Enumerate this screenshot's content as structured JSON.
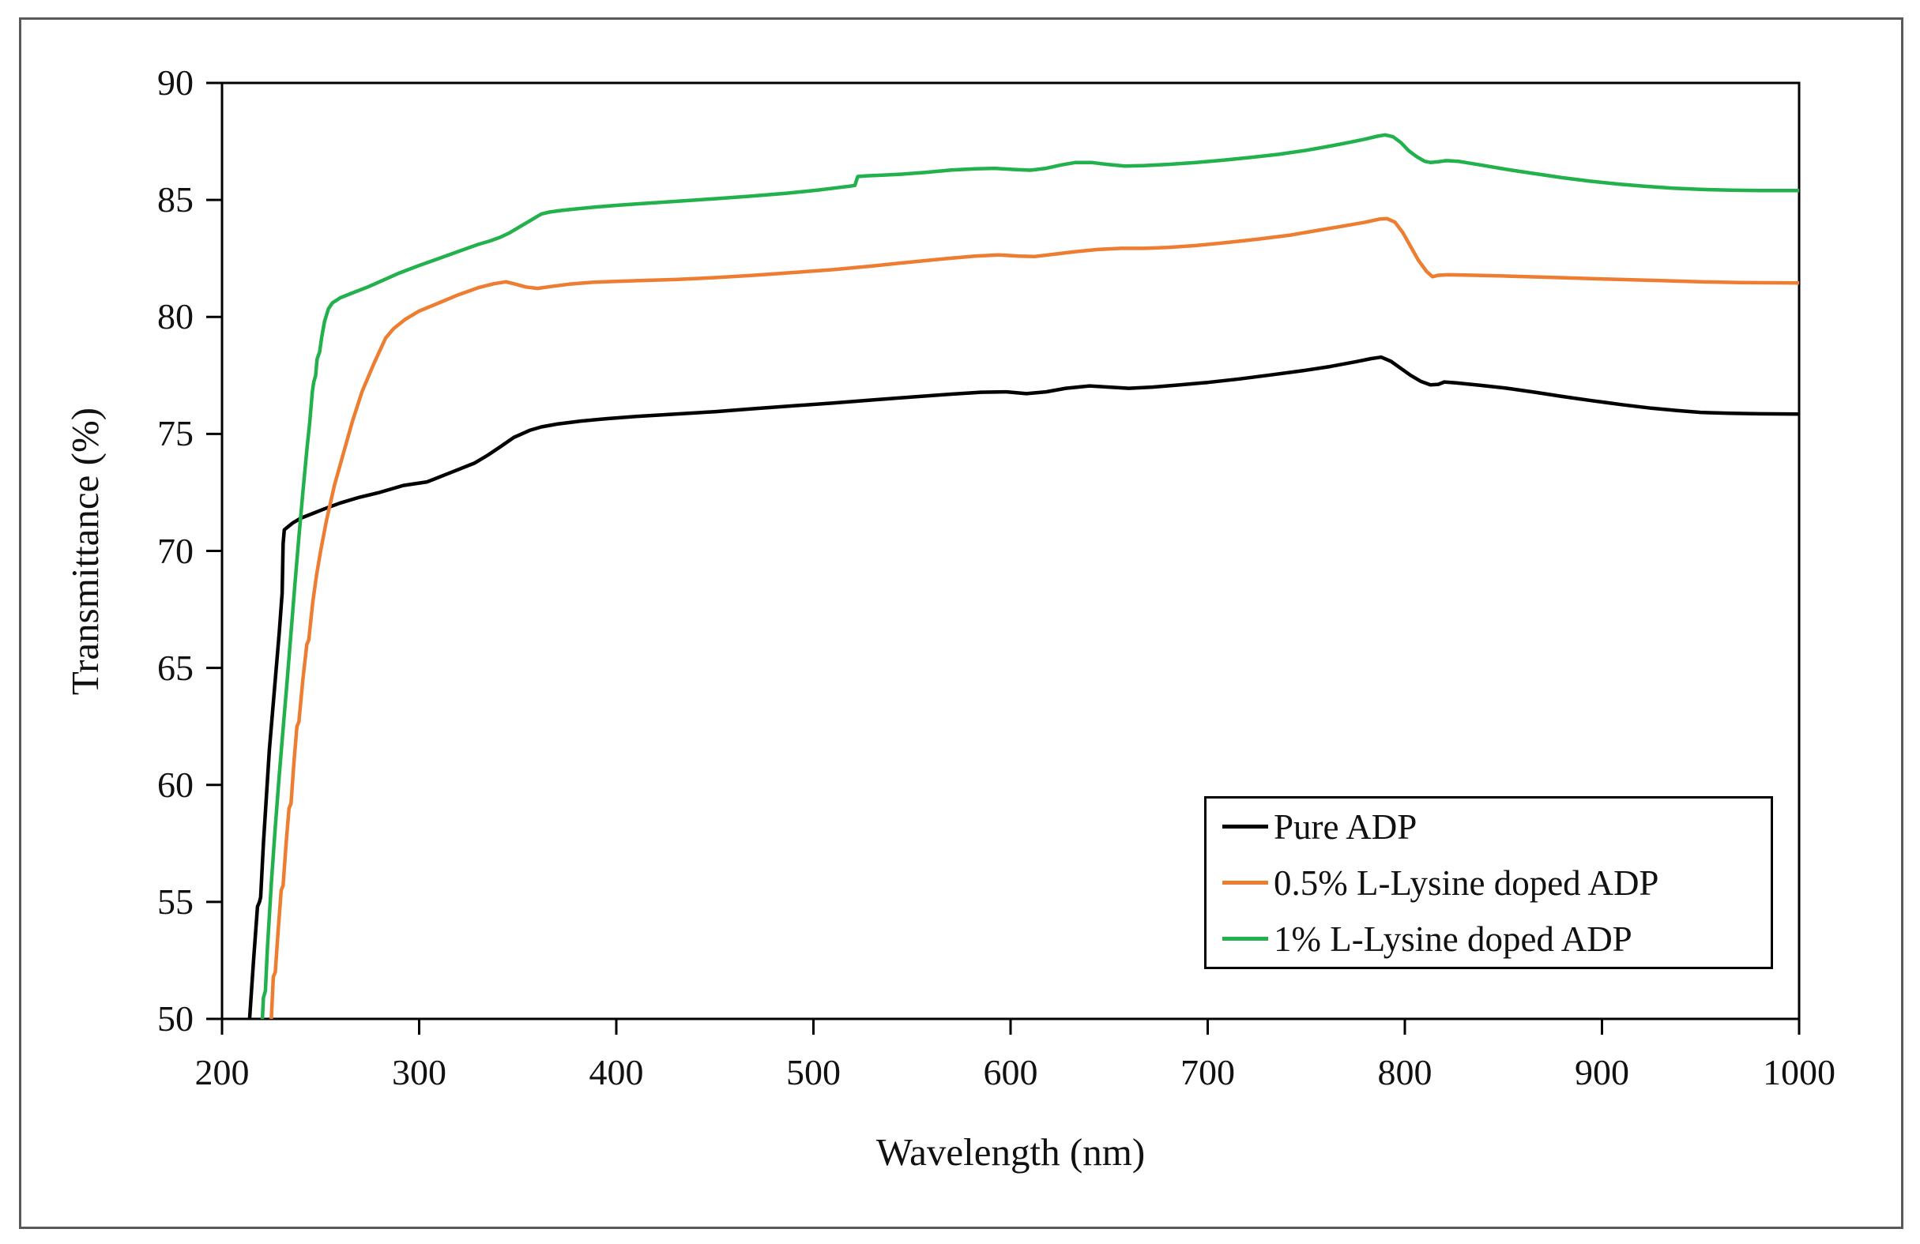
{
  "chart_data": {
    "type": "line",
    "title": "",
    "xlabel": "Wavelength (nm)",
    "ylabel": "Transmittance (%)",
    "xlim": [
      200,
      1000
    ],
    "ylim": [
      50,
      90
    ],
    "x_ticks": [
      200,
      300,
      400,
      500,
      600,
      700,
      800,
      900,
      1000
    ],
    "y_ticks": [
      50,
      55,
      60,
      65,
      70,
      75,
      80,
      85,
      90
    ],
    "grid": false,
    "legend": {
      "position": "inside-bottom-right",
      "entries": [
        "Pure ADP",
        "0.5% L-Lysine doped ADP",
        "1% L-Lysine doped ADP"
      ]
    },
    "colors": {
      "axis": "#000000",
      "text": "#111111",
      "figure_border": "#595959"
    },
    "series": [
      {
        "name": "Pure ADP",
        "color": "#000000",
        "points": [
          [
            213,
            48.5
          ],
          [
            214,
            50
          ],
          [
            216,
            52.5
          ],
          [
            218,
            54.8
          ],
          [
            219,
            55
          ],
          [
            219.6,
            55.2
          ],
          [
            221,
            57.5
          ],
          [
            224,
            61.5
          ],
          [
            227,
            64.5
          ],
          [
            229,
            66.5
          ],
          [
            230.5,
            68.2
          ],
          [
            231,
            70.3
          ],
          [
            231.6,
            70.9
          ],
          [
            233,
            71.0
          ],
          [
            236,
            71.2
          ],
          [
            240,
            71.4
          ],
          [
            246,
            71.6
          ],
          [
            252,
            71.8
          ],
          [
            260,
            72.05
          ],
          [
            270,
            72.3
          ],
          [
            280,
            72.5
          ],
          [
            292,
            72.8
          ],
          [
            304,
            72.95
          ],
          [
            316,
            73.35
          ],
          [
            328,
            73.75
          ],
          [
            335,
            74.1
          ],
          [
            342,
            74.5
          ],
          [
            348,
            74.85
          ],
          [
            352,
            75.0
          ],
          [
            356,
            75.15
          ],
          [
            362,
            75.3
          ],
          [
            370,
            75.42
          ],
          [
            382,
            75.55
          ],
          [
            395,
            75.65
          ],
          [
            410,
            75.75
          ],
          [
            430,
            75.85
          ],
          [
            450,
            75.95
          ],
          [
            470,
            76.08
          ],
          [
            490,
            76.2
          ],
          [
            510,
            76.32
          ],
          [
            530,
            76.45
          ],
          [
            550,
            76.58
          ],
          [
            570,
            76.7
          ],
          [
            585,
            76.78
          ],
          [
            598,
            76.8
          ],
          [
            608,
            76.72
          ],
          [
            618,
            76.8
          ],
          [
            628,
            76.95
          ],
          [
            640,
            77.05
          ],
          [
            650,
            77.0
          ],
          [
            660,
            76.95
          ],
          [
            672,
            77.0
          ],
          [
            686,
            77.1
          ],
          [
            700,
            77.2
          ],
          [
            716,
            77.35
          ],
          [
            732,
            77.52
          ],
          [
            748,
            77.7
          ],
          [
            762,
            77.88
          ],
          [
            775,
            78.08
          ],
          [
            783,
            78.22
          ],
          [
            788,
            78.28
          ],
          [
            793,
            78.1
          ],
          [
            798,
            77.8
          ],
          [
            803,
            77.5
          ],
          [
            808,
            77.25
          ],
          [
            813,
            77.1
          ],
          [
            817,
            77.12
          ],
          [
            820,
            77.22
          ],
          [
            826,
            77.18
          ],
          [
            838,
            77.08
          ],
          [
            852,
            76.95
          ],
          [
            866,
            76.78
          ],
          [
            880,
            76.6
          ],
          [
            895,
            76.42
          ],
          [
            910,
            76.25
          ],
          [
            925,
            76.1
          ],
          [
            938,
            76.0
          ],
          [
            950,
            75.92
          ],
          [
            965,
            75.88
          ],
          [
            980,
            75.86
          ],
          [
            1000,
            75.85
          ]
        ]
      },
      {
        "name": "0.5% L-Lysine doped ADP",
        "color": "#ED7D31",
        "points": [
          [
            224,
            48.5
          ],
          [
            225,
            50
          ],
          [
            226,
            51.8
          ],
          [
            227,
            52.0
          ],
          [
            228.5,
            53.8
          ],
          [
            230,
            55.5
          ],
          [
            231,
            55.7
          ],
          [
            232.5,
            57.5
          ],
          [
            234,
            59.0
          ],
          [
            235,
            59.2
          ],
          [
            236.5,
            61.0
          ],
          [
            238,
            62.5
          ],
          [
            239,
            62.7
          ],
          [
            241,
            64.5
          ],
          [
            243,
            66.0
          ],
          [
            244,
            66.2
          ],
          [
            246,
            67.8
          ],
          [
            248,
            69.0
          ],
          [
            250,
            70.0
          ],
          [
            253,
            71.3
          ],
          [
            257,
            72.8
          ],
          [
            261,
            74.0
          ],
          [
            266,
            75.5
          ],
          [
            271,
            76.8
          ],
          [
            277,
            78.0
          ],
          [
            283,
            79.1
          ],
          [
            287,
            79.5
          ],
          [
            293,
            79.9
          ],
          [
            300,
            80.25
          ],
          [
            310,
            80.6
          ],
          [
            320,
            80.95
          ],
          [
            330,
            81.25
          ],
          [
            338,
            81.42
          ],
          [
            344,
            81.5
          ],
          [
            349,
            81.4
          ],
          [
            354,
            81.28
          ],
          [
            360,
            81.22
          ],
          [
            367,
            81.3
          ],
          [
            376,
            81.4
          ],
          [
            388,
            81.48
          ],
          [
            400,
            81.52
          ],
          [
            415,
            81.56
          ],
          [
            430,
            81.6
          ],
          [
            450,
            81.68
          ],
          [
            470,
            81.78
          ],
          [
            490,
            81.9
          ],
          [
            510,
            82.02
          ],
          [
            530,
            82.18
          ],
          [
            550,
            82.35
          ],
          [
            568,
            82.5
          ],
          [
            582,
            82.6
          ],
          [
            594,
            82.65
          ],
          [
            604,
            82.6
          ],
          [
            612,
            82.58
          ],
          [
            622,
            82.68
          ],
          [
            632,
            82.78
          ],
          [
            644,
            82.88
          ],
          [
            656,
            82.93
          ],
          [
            668,
            82.93
          ],
          [
            680,
            82.97
          ],
          [
            694,
            83.05
          ],
          [
            710,
            83.18
          ],
          [
            726,
            83.33
          ],
          [
            742,
            83.5
          ],
          [
            756,
            83.7
          ],
          [
            770,
            83.9
          ],
          [
            780,
            84.05
          ],
          [
            787,
            84.18
          ],
          [
            791,
            84.2
          ],
          [
            795,
            84.05
          ],
          [
            799,
            83.6
          ],
          [
            803,
            83.0
          ],
          [
            807,
            82.4
          ],
          [
            811,
            81.95
          ],
          [
            814,
            81.72
          ],
          [
            817,
            81.78
          ],
          [
            822,
            81.8
          ],
          [
            835,
            81.78
          ],
          [
            850,
            81.75
          ],
          [
            870,
            81.7
          ],
          [
            890,
            81.65
          ],
          [
            910,
            81.6
          ],
          [
            930,
            81.55
          ],
          [
            950,
            81.5
          ],
          [
            970,
            81.47
          ],
          [
            1000,
            81.45
          ]
        ]
      },
      {
        "name": "1% L-Lysine doped ADP",
        "color": "#22B14C",
        "points": [
          [
            219.8,
            48.5
          ],
          [
            220.5,
            50
          ],
          [
            221,
            50.9
          ],
          [
            222,
            51.2
          ],
          [
            223,
            53.0
          ],
          [
            225,
            55.8
          ],
          [
            227,
            58.2
          ],
          [
            229,
            60.4
          ],
          [
            231,
            62.4
          ],
          [
            233,
            64.4
          ],
          [
            235,
            66.5
          ],
          [
            237,
            68.6
          ],
          [
            239,
            70.6
          ],
          [
            241,
            72.5
          ],
          [
            243,
            74.3
          ],
          [
            244.5,
            75.5
          ],
          [
            245.8,
            76.8
          ],
          [
            246.5,
            77.2
          ],
          [
            247.5,
            77.5
          ],
          [
            248.2,
            78.2
          ],
          [
            249.5,
            78.5
          ],
          [
            250.5,
            79.1
          ],
          [
            252,
            79.8
          ],
          [
            254,
            80.35
          ],
          [
            256,
            80.6
          ],
          [
            260,
            80.82
          ],
          [
            266,
            81.02
          ],
          [
            274,
            81.28
          ],
          [
            282,
            81.58
          ],
          [
            290,
            81.88
          ],
          [
            300,
            82.2
          ],
          [
            310,
            82.5
          ],
          [
            320,
            82.8
          ],
          [
            330,
            83.1
          ],
          [
            336,
            83.25
          ],
          [
            341,
            83.4
          ],
          [
            346,
            83.6
          ],
          [
            351,
            83.85
          ],
          [
            356,
            84.1
          ],
          [
            359,
            84.25
          ],
          [
            362,
            84.4
          ],
          [
            366,
            84.48
          ],
          [
            372,
            84.55
          ],
          [
            380,
            84.62
          ],
          [
            390,
            84.7
          ],
          [
            402,
            84.78
          ],
          [
            416,
            84.86
          ],
          [
            432,
            84.95
          ],
          [
            450,
            85.05
          ],
          [
            468,
            85.16
          ],
          [
            486,
            85.28
          ],
          [
            502,
            85.42
          ],
          [
            512,
            85.52
          ],
          [
            518,
            85.58
          ],
          [
            521,
            85.62
          ],
          [
            522.5,
            86.0
          ],
          [
            527,
            86.03
          ],
          [
            535,
            86.06
          ],
          [
            545,
            86.1
          ],
          [
            557,
            86.18
          ],
          [
            570,
            86.28
          ],
          [
            582,
            86.33
          ],
          [
            592,
            86.35
          ],
          [
            602,
            86.3
          ],
          [
            610,
            86.27
          ],
          [
            618,
            86.35
          ],
          [
            626,
            86.5
          ],
          [
            633,
            86.6
          ],
          [
            641,
            86.6
          ],
          [
            649,
            86.52
          ],
          [
            658,
            86.45
          ],
          [
            668,
            86.47
          ],
          [
            680,
            86.52
          ],
          [
            694,
            86.6
          ],
          [
            708,
            86.7
          ],
          [
            722,
            86.82
          ],
          [
            736,
            86.95
          ],
          [
            750,
            87.12
          ],
          [
            762,
            87.3
          ],
          [
            772,
            87.46
          ],
          [
            780,
            87.6
          ],
          [
            786,
            87.72
          ],
          [
            790,
            87.78
          ],
          [
            794,
            87.7
          ],
          [
            798,
            87.45
          ],
          [
            802,
            87.1
          ],
          [
            806,
            86.85
          ],
          [
            810,
            86.65
          ],
          [
            813,
            86.6
          ],
          [
            817,
            86.63
          ],
          [
            821,
            86.68
          ],
          [
            827,
            86.65
          ],
          [
            838,
            86.5
          ],
          [
            852,
            86.3
          ],
          [
            866,
            86.12
          ],
          [
            880,
            85.95
          ],
          [
            894,
            85.8
          ],
          [
            908,
            85.68
          ],
          [
            922,
            85.58
          ],
          [
            936,
            85.5
          ],
          [
            950,
            85.45
          ],
          [
            965,
            85.42
          ],
          [
            980,
            85.4
          ],
          [
            1000,
            85.4
          ]
        ]
      }
    ]
  }
}
